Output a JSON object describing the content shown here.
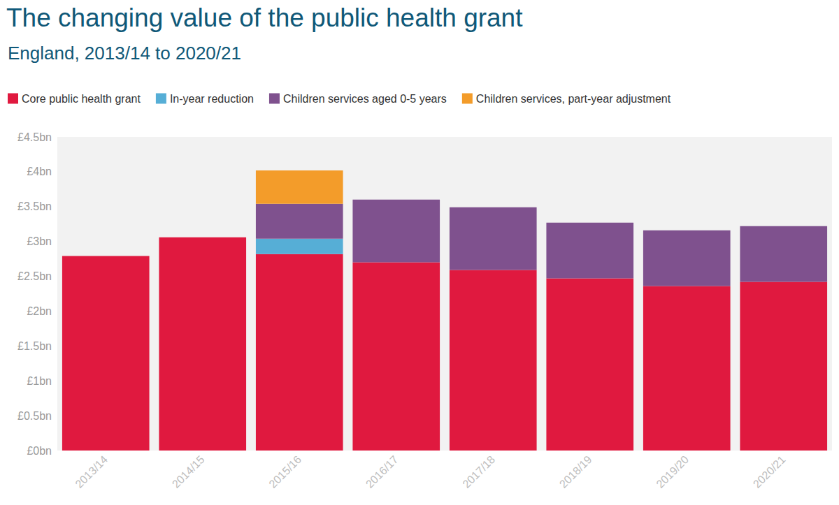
{
  "chart_data": {
    "type": "bar",
    "title": "The changing value of the public health grant",
    "subtitle": "England, 2013/14 to 2020/21",
    "categories": [
      "2013/14",
      "2014/15",
      "2015/16",
      "2016/17",
      "2017/18",
      "2018/19",
      "2019/20",
      "2020/21"
    ],
    "series": [
      {
        "name": "Core public health grant",
        "color": "#e0193f",
        "values": [
          2.79,
          3.06,
          2.82,
          2.7,
          2.59,
          2.47,
          2.36,
          2.42
        ]
      },
      {
        "name": "In-year reduction",
        "color": "#56aed6",
        "values": [
          null,
          null,
          0.22,
          null,
          null,
          null,
          null,
          null
        ]
      },
      {
        "name": "Children services aged 0-5 years",
        "color": "#7f518e",
        "values": [
          null,
          null,
          0.5,
          0.9,
          0.9,
          0.8,
          0.8,
          0.8
        ]
      },
      {
        "name": "Children services, part-year adjustment",
        "color": "#f39c2a",
        "values": [
          null,
          null,
          0.48,
          null,
          null,
          null,
          null,
          null
        ]
      }
    ],
    "ylim": [
      0,
      4.5
    ],
    "yticks": [
      {
        "value": 0,
        "label": "£0bn"
      },
      {
        "value": 0.5,
        "label": "£0.5bn"
      },
      {
        "value": 1,
        "label": "£1bn"
      },
      {
        "value": 1.5,
        "label": "£1.5bn"
      },
      {
        "value": 2,
        "label": "£2bn"
      },
      {
        "value": 2.5,
        "label": "£2.5bn"
      },
      {
        "value": 3,
        "label": "£3bn"
      },
      {
        "value": 3.5,
        "label": "£3.5bn"
      },
      {
        "value": 4,
        "label": "£4bn"
      },
      {
        "value": 4.5,
        "label": "£4.5bn"
      }
    ],
    "stacked": true,
    "grid": false,
    "legend": "top-left"
  }
}
